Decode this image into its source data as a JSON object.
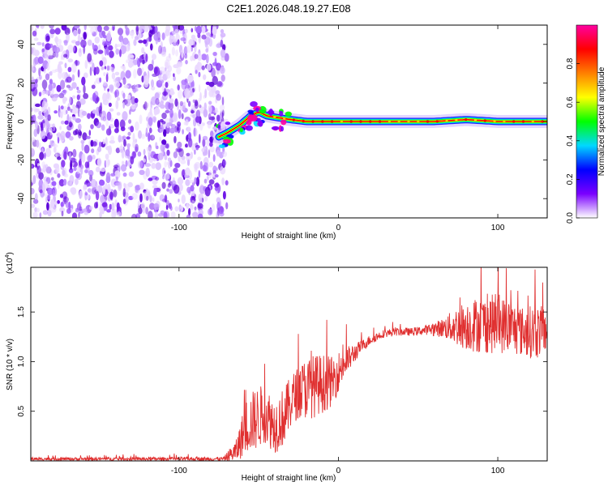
{
  "title": "C2E1.2026.048.19.27.E08",
  "chart_data": [
    {
      "type": "heatmap",
      "name": "spectrogram",
      "xlabel": "Height of straight line (km)",
      "ylabel": "Frequency (Hz)",
      "xlim": [
        -193,
        131
      ],
      "ylim": [
        -50,
        50
      ],
      "xticks": [
        -100,
        0,
        100
      ],
      "yticks": [
        -40,
        -20,
        0,
        20,
        40
      ],
      "xtick_labels": [
        "-100",
        "0",
        "100"
      ],
      "ytick_labels": [
        "-40",
        "-20",
        "0",
        "20",
        "40"
      ],
      "colorbar": {
        "label": "Normalized spectral amplitude",
        "range": [
          0,
          1
        ],
        "ticks": [
          0.0,
          0.2,
          0.4,
          0.6,
          0.8
        ],
        "tick_labels": [
          "0.0",
          "0.2",
          "0.4",
          "0.6",
          "0.8"
        ],
        "colormap": [
          "#ffffff",
          "#7a00ff",
          "#0000ff",
          "#00d8ff",
          "#00ff00",
          "#ffff00",
          "#ff8000",
          "#ff0000",
          "#ff00a0"
        ]
      },
      "regions": {
        "noise_x": [
          -193,
          -72
        ],
        "noise_y": [
          -50,
          50
        ],
        "ridge_x": [
          -75,
          131
        ],
        "ridge_path": [
          [
            -75,
            -8
          ],
          [
            -70,
            -6
          ],
          [
            -62,
            -2
          ],
          [
            -55,
            3
          ],
          [
            -50,
            5
          ],
          [
            -45,
            3
          ],
          [
            -38,
            2
          ],
          [
            -30,
            1
          ],
          [
            -20,
            0
          ],
          [
            -10,
            0
          ],
          [
            0,
            0
          ],
          [
            60,
            0
          ],
          [
            80,
            1
          ],
          [
            100,
            0
          ],
          [
            131,
            0
          ]
        ]
      }
    },
    {
      "type": "line",
      "name": "snr",
      "xlabel": "Height of straight line (km)",
      "ylabel": "SNR (10 * v/v)",
      "exponent_label": "(x10",
      "exponent_value": "4",
      "exponent_close": ")",
      "xlim": [
        -193,
        131
      ],
      "ylim": [
        0,
        1.95
      ],
      "xticks": [
        -100,
        0,
        100
      ],
      "yticks": [
        0.5,
        1.0,
        1.5
      ],
      "xtick_labels": [
        "-100",
        "0",
        "100"
      ],
      "ytick_labels": [
        "0.5",
        "1.0",
        "1.5"
      ],
      "line_color": "#e03030",
      "envelope": {
        "x": [
          -193,
          -72,
          -64,
          -58,
          -52,
          -46,
          -40,
          -34,
          -28,
          -22,
          -16,
          -10,
          -4,
          2,
          8,
          14,
          20,
          28,
          36,
          46,
          56,
          66,
          76,
          86,
          96,
          106,
          116,
          124,
          131
        ],
        "mean": [
          0.02,
          0.02,
          0.1,
          0.35,
          0.42,
          0.48,
          0.35,
          0.45,
          0.65,
          0.72,
          0.75,
          0.78,
          0.8,
          0.95,
          1.05,
          1.15,
          1.22,
          1.28,
          1.3,
          1.3,
          1.32,
          1.34,
          1.36,
          1.37,
          1.38,
          1.36,
          1.3,
          1.3,
          1.32
        ],
        "spread": [
          0.015,
          0.02,
          0.12,
          0.28,
          0.32,
          0.3,
          0.28,
          0.3,
          0.25,
          0.3,
          0.32,
          0.3,
          0.25,
          0.18,
          0.12,
          0.06,
          0.05,
          0.04,
          0.04,
          0.04,
          0.05,
          0.1,
          0.22,
          0.28,
          0.3,
          0.28,
          0.25,
          0.28,
          0.22
        ]
      }
    }
  ]
}
